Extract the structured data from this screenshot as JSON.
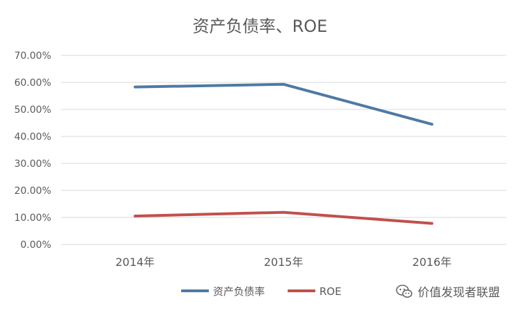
{
  "chart_data": {
    "type": "line",
    "title": "资产负债率、ROE",
    "categories": [
      "2014年",
      "2015年",
      "2016年"
    ],
    "y_ticks": [
      "0.00%",
      "10.00%",
      "20.00%",
      "30.00%",
      "40.00%",
      "50.00%",
      "60.00%",
      "70.00%"
    ],
    "ylim": [
      0,
      70
    ],
    "y_unit": "%",
    "grid": true,
    "legend_position": "bottom",
    "series": [
      {
        "name": "资产负债率",
        "values": [
          58.3,
          59.3,
          44.5
        ],
        "color": "#4e7aa3"
      },
      {
        "name": "ROE",
        "values": [
          10.5,
          11.9,
          7.8
        ],
        "color": "#c0504d"
      }
    ]
  },
  "watermark": {
    "text": "价值发现者联盟",
    "icon": "wechat-icon"
  }
}
